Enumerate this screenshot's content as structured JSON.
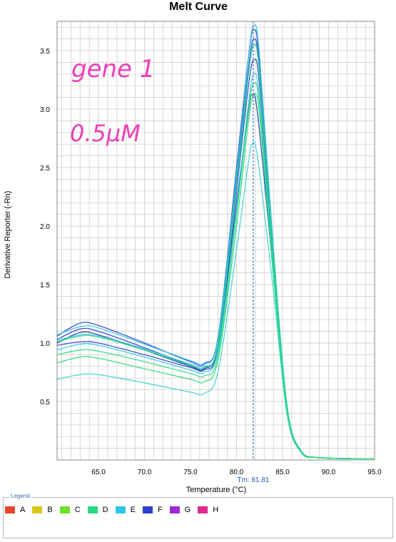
{
  "annotations": {
    "line1": "gene 1",
    "line2": "0.5μM"
  },
  "tm_label": "Tm: 81.81",
  "legend": {
    "title": "Legend",
    "items": [
      {
        "label": "A",
        "color": "#e8452a"
      },
      {
        "label": "B",
        "color": "#d8c81e"
      },
      {
        "label": "C",
        "color": "#6ee02a"
      },
      {
        "label": "D",
        "color": "#2bd97e"
      },
      {
        "label": "E",
        "color": "#2ec4e6"
      },
      {
        "label": "F",
        "color": "#2a3fd0"
      },
      {
        "label": "G",
        "color": "#9b2ad6"
      },
      {
        "label": "H",
        "color": "#e02a8c"
      }
    ]
  },
  "chart_data": {
    "type": "line",
    "title": "Melt Curve",
    "xlabel": "Temperature (°C)",
    "ylabel": "Derivative Reporter (-Rn)",
    "xlim": [
      60.5,
      95.0
    ],
    "ylim": [
      0.0,
      3.75
    ],
    "x_ticks": [
      65.0,
      70.0,
      75.0,
      80.0,
      85.0,
      90.0,
      95.0
    ],
    "x_tick_labels": [
      "65.0",
      "70.0",
      "75.0",
      "80.0",
      "85.0",
      "90.0",
      "95.0"
    ],
    "y_ticks": [
      0.5,
      1.0,
      1.5,
      2.0,
      2.5,
      3.0,
      3.5
    ],
    "y_tick_labels": [
      "0.5",
      "1.0",
      "1.5",
      "2.0",
      "2.5",
      "3.0",
      "3.5"
    ],
    "grid": true,
    "tm_marker": 81.81,
    "series": [
      {
        "color": "#2a3fd0",
        "values": [
          [
            60.5,
            1.06
          ],
          [
            63,
            1.17
          ],
          [
            65,
            1.15
          ],
          [
            70,
            1.0
          ],
          [
            75,
            0.84
          ],
          [
            76.5,
            0.82
          ],
          [
            78,
            1.05
          ],
          [
            80,
            2.5
          ],
          [
            81.3,
            3.45
          ],
          [
            81.9,
            3.68
          ],
          [
            82.5,
            3.4
          ],
          [
            84,
            1.8
          ],
          [
            85.5,
            0.45
          ],
          [
            87,
            0.08
          ],
          [
            89,
            0.02
          ],
          [
            95,
            0.01
          ]
        ]
      },
      {
        "color": "#2a3fd0",
        "values": [
          [
            60.5,
            1.03
          ],
          [
            63,
            1.12
          ],
          [
            65,
            1.1
          ],
          [
            70,
            0.96
          ],
          [
            75,
            0.81
          ],
          [
            76.5,
            0.79
          ],
          [
            78,
            1.0
          ],
          [
            80,
            2.4
          ],
          [
            81.3,
            3.35
          ],
          [
            81.9,
            3.6
          ],
          [
            82.5,
            3.33
          ],
          [
            84,
            1.75
          ],
          [
            85.5,
            0.43
          ],
          [
            87,
            0.08
          ],
          [
            89,
            0.02
          ],
          [
            95,
            0.01
          ]
        ]
      },
      {
        "color": "#1f3aa8",
        "values": [
          [
            60.5,
            1.0
          ],
          [
            63,
            1.09
          ],
          [
            65,
            1.07
          ],
          [
            70,
            0.94
          ],
          [
            75,
            0.8
          ],
          [
            76.5,
            0.78
          ],
          [
            78,
            0.98
          ],
          [
            80,
            2.2
          ],
          [
            81.3,
            2.98
          ],
          [
            81.7,
            3.12
          ],
          [
            82.3,
            2.95
          ],
          [
            84,
            1.6
          ],
          [
            85.5,
            0.4
          ],
          [
            87,
            0.07
          ],
          [
            89,
            0.02
          ],
          [
            95,
            0.01
          ]
        ]
      },
      {
        "color": "#2a3fd0",
        "values": [
          [
            60.5,
            0.98
          ],
          [
            63,
            1.01
          ],
          [
            65,
            1.0
          ],
          [
            70,
            0.9
          ],
          [
            75,
            0.79
          ],
          [
            76.5,
            0.77
          ],
          [
            78,
            0.97
          ],
          [
            80,
            2.3
          ],
          [
            81.3,
            3.2
          ],
          [
            81.9,
            3.42
          ],
          [
            82.5,
            3.2
          ],
          [
            84,
            1.7
          ],
          [
            85.5,
            0.42
          ],
          [
            87,
            0.08
          ],
          [
            89,
            0.02
          ],
          [
            95,
            0.01
          ]
        ]
      },
      {
        "color": "#2ec4e6",
        "values": [
          [
            60.5,
            1.07
          ],
          [
            63,
            1.14
          ],
          [
            65,
            1.13
          ],
          [
            70,
            0.99
          ],
          [
            75,
            0.85
          ],
          [
            76.5,
            0.83
          ],
          [
            78,
            1.05
          ],
          [
            80,
            2.45
          ],
          [
            81.3,
            3.45
          ],
          [
            81.9,
            3.72
          ],
          [
            82.5,
            3.45
          ],
          [
            84,
            1.82
          ],
          [
            85.5,
            0.46
          ],
          [
            87,
            0.08
          ],
          [
            89,
            0.02
          ],
          [
            95,
            0.01
          ]
        ]
      },
      {
        "color": "#2ec4e6",
        "values": [
          [
            60.5,
            1.02
          ],
          [
            63,
            1.07
          ],
          [
            65,
            1.06
          ],
          [
            70,
            0.95
          ],
          [
            75,
            0.82
          ],
          [
            76.5,
            0.8
          ],
          [
            78,
            1.0
          ],
          [
            80,
            2.35
          ],
          [
            81.3,
            3.3
          ],
          [
            81.9,
            3.55
          ],
          [
            82.5,
            3.3
          ],
          [
            84,
            1.74
          ],
          [
            85.5,
            0.44
          ],
          [
            87,
            0.08
          ],
          [
            89,
            0.02
          ],
          [
            95,
            0.01
          ]
        ]
      },
      {
        "color": "#2ec4e6",
        "values": [
          [
            60.5,
            0.94
          ],
          [
            63,
            0.99
          ],
          [
            65,
            0.98
          ],
          [
            70,
            0.88
          ],
          [
            75,
            0.77
          ],
          [
            76.5,
            0.75
          ],
          [
            78,
            0.94
          ],
          [
            80,
            2.15
          ],
          [
            81.3,
            3.05
          ],
          [
            81.9,
            3.3
          ],
          [
            82.5,
            3.08
          ],
          [
            84,
            1.65
          ],
          [
            85.5,
            0.42
          ],
          [
            87,
            0.07
          ],
          [
            89,
            0.02
          ],
          [
            95,
            0.01
          ]
        ]
      },
      {
        "color": "#3bd1d9",
        "values": [
          [
            60.5,
            0.69
          ],
          [
            63,
            0.73
          ],
          [
            65,
            0.73
          ],
          [
            70,
            0.66
          ],
          [
            75,
            0.58
          ],
          [
            76.5,
            0.57
          ],
          [
            78,
            0.76
          ],
          [
            80,
            1.8
          ],
          [
            81.3,
            2.55
          ],
          [
            81.7,
            2.7
          ],
          [
            82.3,
            2.58
          ],
          [
            84,
            1.45
          ],
          [
            85.5,
            0.38
          ],
          [
            87,
            0.07
          ],
          [
            89,
            0.02
          ],
          [
            95,
            0.01
          ]
        ]
      },
      {
        "color": "#2bd97e",
        "values": [
          [
            60.5,
            1.01
          ],
          [
            63,
            1.06
          ],
          [
            65,
            1.05
          ],
          [
            70,
            0.94
          ],
          [
            75,
            0.81
          ],
          [
            76.5,
            0.79
          ],
          [
            78,
            0.99
          ],
          [
            80,
            2.35
          ],
          [
            81.3,
            3.3
          ],
          [
            81.9,
            3.55
          ],
          [
            82.5,
            3.3
          ],
          [
            84,
            1.74
          ],
          [
            85.5,
            0.44
          ],
          [
            87,
            0.08
          ],
          [
            89,
            0.02
          ],
          [
            95,
            0.01
          ]
        ]
      },
      {
        "color": "#2bd97e",
        "values": [
          [
            60.5,
            0.9
          ],
          [
            63,
            0.94
          ],
          [
            65,
            0.93
          ],
          [
            70,
            0.84
          ],
          [
            75,
            0.74
          ],
          [
            76.5,
            0.72
          ],
          [
            78,
            0.9
          ],
          [
            80,
            2.1
          ],
          [
            81.3,
            3.0
          ],
          [
            81.9,
            3.22
          ],
          [
            82.5,
            3.02
          ],
          [
            84,
            1.62
          ],
          [
            85.5,
            0.42
          ],
          [
            87,
            0.07
          ],
          [
            89,
            0.02
          ],
          [
            95,
            0.01
          ]
        ]
      },
      {
        "color": "#2bd97e",
        "values": [
          [
            60.5,
            0.83
          ],
          [
            63,
            0.88
          ],
          [
            65,
            0.87
          ],
          [
            70,
            0.78
          ],
          [
            75,
            0.69
          ],
          [
            76.5,
            0.67
          ],
          [
            78,
            0.86
          ],
          [
            80,
            2.0
          ],
          [
            81.3,
            2.9
          ],
          [
            81.9,
            3.12
          ],
          [
            82.5,
            2.94
          ],
          [
            84,
            1.58
          ],
          [
            85.5,
            0.41
          ],
          [
            87,
            0.07
          ],
          [
            89,
            0.02
          ],
          [
            95,
            0.01
          ]
        ]
      }
    ]
  }
}
